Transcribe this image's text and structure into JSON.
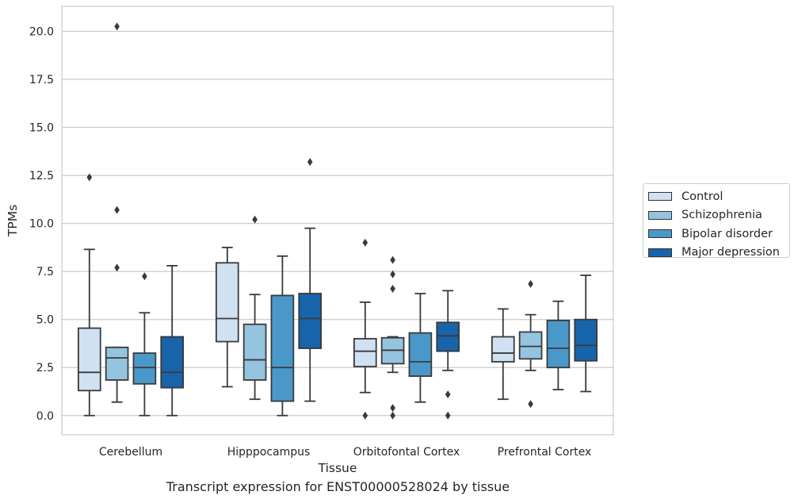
{
  "chart_data": {
    "type": "boxplot",
    "xlabel": "Tissue",
    "ylabel": "TPMs",
    "caption": "Transcript expression for ENST00000528024 by tissue",
    "ylim": [
      -1.0,
      21.3
    ],
    "yticks": [
      0.0,
      2.5,
      5.0,
      7.5,
      10.0,
      12.5,
      15.0,
      17.5,
      20.0
    ],
    "ytick_labels": [
      "0.0",
      "2.5",
      "5.0",
      "7.5",
      "10.0",
      "12.5",
      "15.0",
      "17.5",
      "20.0"
    ],
    "grid": true,
    "legend_position": "right",
    "categories": [
      "Cerebellum",
      "Hipppocampus",
      "Orbitofontal Cortex",
      "Prefrontal Cortex"
    ],
    "series": [
      {
        "name": "Control",
        "color": "#d0e1f2",
        "boxes": [
          {
            "whislo": 0.0,
            "q1": 1.3,
            "med": 2.25,
            "q3": 4.55,
            "whishi": 8.65,
            "fliers": [
              12.4
            ]
          },
          {
            "whislo": 1.5,
            "q1": 3.85,
            "med": 5.05,
            "q3": 7.95,
            "whishi": 8.75,
            "fliers": []
          },
          {
            "whislo": 1.2,
            "q1": 2.55,
            "med": 3.35,
            "q3": 4.0,
            "whishi": 5.9,
            "fliers": [
              9.0,
              0.0
            ]
          },
          {
            "whislo": 0.85,
            "q1": 2.8,
            "med": 3.25,
            "q3": 4.1,
            "whishi": 5.55,
            "fliers": []
          }
        ]
      },
      {
        "name": "Schizophrenia",
        "color": "#94c4df",
        "boxes": [
          {
            "whislo": 0.7,
            "q1": 1.85,
            "med": 3.0,
            "q3": 3.55,
            "whishi": 3.55,
            "fliers": [
              20.25,
              10.7,
              7.7
            ]
          },
          {
            "whislo": 0.85,
            "q1": 1.85,
            "med": 2.9,
            "q3": 4.75,
            "whishi": 6.3,
            "fliers": [
              10.2
            ]
          },
          {
            "whislo": 2.25,
            "q1": 2.7,
            "med": 3.4,
            "q3": 4.05,
            "whishi": 4.1,
            "fliers": [
              8.1,
              7.35,
              6.6,
              0.4,
              0.0
            ]
          },
          {
            "whislo": 2.35,
            "q1": 2.95,
            "med": 3.6,
            "q3": 4.35,
            "whishi": 5.25,
            "fliers": [
              6.85,
              0.6
            ]
          }
        ]
      },
      {
        "name": "Bipolar disorder",
        "color": "#4a98c9",
        "boxes": [
          {
            "whislo": 0.0,
            "q1": 1.65,
            "med": 2.5,
            "q3": 3.25,
            "whishi": 5.35,
            "fliers": [
              7.25
            ]
          },
          {
            "whislo": 0.0,
            "q1": 0.75,
            "med": 2.5,
            "q3": 6.25,
            "whishi": 8.3,
            "fliers": []
          },
          {
            "whislo": 0.7,
            "q1": 2.05,
            "med": 2.8,
            "q3": 4.3,
            "whishi": 6.35,
            "fliers": []
          },
          {
            "whislo": 1.35,
            "q1": 2.5,
            "med": 3.5,
            "q3": 4.95,
            "whishi": 5.95,
            "fliers": []
          }
        ]
      },
      {
        "name": "Major depression",
        "color": "#1764ab",
        "boxes": [
          {
            "whislo": 0.0,
            "q1": 1.45,
            "med": 2.25,
            "q3": 4.1,
            "whishi": 7.8,
            "fliers": []
          },
          {
            "whislo": 0.75,
            "q1": 3.5,
            "med": 5.05,
            "q3": 6.35,
            "whishi": 9.75,
            "fliers": [
              13.2
            ]
          },
          {
            "whislo": 2.35,
            "q1": 3.35,
            "med": 4.15,
            "q3": 4.85,
            "whishi": 6.5,
            "fliers": [
              1.1,
              0.0
            ]
          },
          {
            "whislo": 1.25,
            "q1": 2.85,
            "med": 3.65,
            "q3": 5.0,
            "whishi": 7.3,
            "fliers": []
          }
        ]
      }
    ]
  }
}
